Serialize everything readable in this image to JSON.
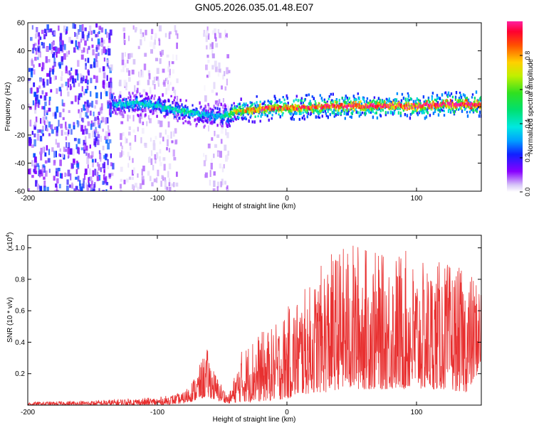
{
  "title": "GN05.2026.035.01.48.E07",
  "chart_data": [
    {
      "type": "heatmap",
      "name": "spectrogram",
      "xlabel": "Height of straight line (km)",
      "ylabel": "Frequency (Hz)",
      "xlim": [
        -200,
        150
      ],
      "ylim": [
        -60,
        60
      ],
      "x_ticks": [
        "-200",
        "-100",
        "0",
        "100"
      ],
      "x_tick_values": [
        -200,
        -100,
        0,
        100
      ],
      "y_ticks": [
        "60",
        "40",
        "20",
        "0",
        "-20",
        "-40",
        "-60"
      ],
      "y_tick_values": [
        60,
        40,
        20,
        0,
        -20,
        -40,
        -60
      ],
      "colorbar": {
        "label": "Normalized spectral amplitude",
        "ticks": [
          "0.0",
          "0.2",
          "0.4",
          "0.6",
          "0.8"
        ],
        "tick_values": [
          0.0,
          0.2,
          0.4,
          0.6,
          0.8
        ],
        "range": [
          0,
          1
        ]
      },
      "ridge": {
        "x": [
          -135,
          -120,
          -100,
          -80,
          -60,
          -50,
          -40,
          -20,
          0,
          20,
          40,
          60,
          80,
          100,
          120,
          150
        ],
        "frequency": [
          2,
          3,
          1,
          -3,
          -6,
          -6,
          -3,
          -1,
          0,
          0,
          1,
          1,
          1,
          1,
          2,
          2
        ],
        "amplitude": [
          0.3,
          0.35,
          0.35,
          0.4,
          0.3,
          0.35,
          0.65,
          0.8,
          0.75,
          0.8,
          0.85,
          0.85,
          0.85,
          0.85,
          0.9,
          0.9
        ]
      },
      "noise_regions": [
        {
          "x": [
            -200,
            -135
          ],
          "level": 0.15
        },
        {
          "x": [
            -130,
            -85
          ],
          "level": 0.05
        },
        {
          "x": [
            -65,
            -45
          ],
          "level": 0.05
        }
      ]
    },
    {
      "type": "line",
      "name": "snr",
      "xlabel": "Height of straight line (km)",
      "ylabel": "SNR (10 * v/v)",
      "scale_label": "(x10",
      "scale_exponent": "4",
      "xlim": [
        -200,
        150
      ],
      "ylim": [
        0,
        1.08
      ],
      "x_ticks": [
        "-200",
        "-100",
        "0",
        "100"
      ],
      "x_tick_values": [
        -200,
        -100,
        0,
        100
      ],
      "y_ticks": [
        "0.2",
        "0.4",
        "0.6",
        "0.8",
        "1.0"
      ],
      "y_tick_values": [
        0.2,
        0.4,
        0.6,
        0.8,
        1.0
      ],
      "color": "#e83030",
      "series": {
        "x": [
          -200,
          -150,
          -130,
          -100,
          -80,
          -70,
          -62,
          -55,
          -45,
          -35,
          -25,
          -10,
          0,
          10,
          20,
          30,
          40,
          55,
          75,
          90,
          100,
          120,
          140,
          150
        ],
        "envelope_max": [
          0.02,
          0.03,
          0.04,
          0.05,
          0.08,
          0.2,
          0.37,
          0.2,
          0.06,
          0.35,
          0.45,
          0.5,
          0.62,
          0.72,
          0.78,
          0.95,
          1.0,
          1.05,
          0.95,
          1.0,
          0.9,
          0.92,
          0.85,
          0.8
        ],
        "envelope_min": [
          0.0,
          0.0,
          0.0,
          0.0,
          0.01,
          0.03,
          0.05,
          0.03,
          0.01,
          0.02,
          0.02,
          0.03,
          0.04,
          0.06,
          0.08,
          0.08,
          0.1,
          0.1,
          0.1,
          0.1,
          0.1,
          0.1,
          0.08,
          0.25
        ]
      }
    }
  ]
}
